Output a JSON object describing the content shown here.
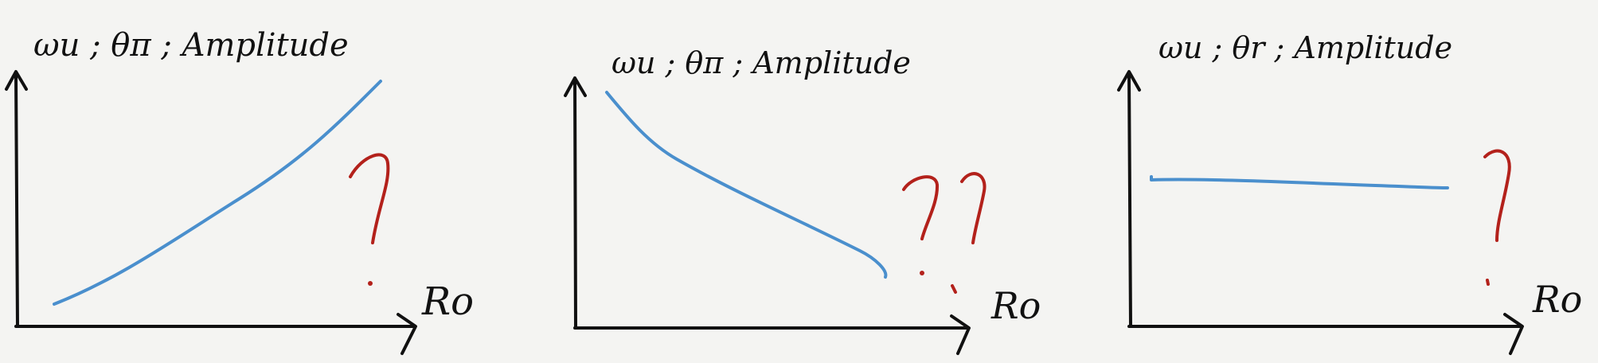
{
  "panels": [
    {
      "y_label": "ωu ; θπ ; Amplitude",
      "x_label": "Ro",
      "trend": "increasing",
      "annotation": "?"
    },
    {
      "y_label": "ωu ; θπ ; Amplitude",
      "x_label": "Ro",
      "trend": "decreasing",
      "annotation": "??"
    },
    {
      "y_label": "ωu ; θr ; Amplitude",
      "x_label": "Ro",
      "trend": "constant",
      "annotation": "?"
    }
  ],
  "colors": {
    "axis": "#111111",
    "curve": "#4a8fcd",
    "annotation": "#b3211b",
    "background": "#f4f4f2"
  }
}
